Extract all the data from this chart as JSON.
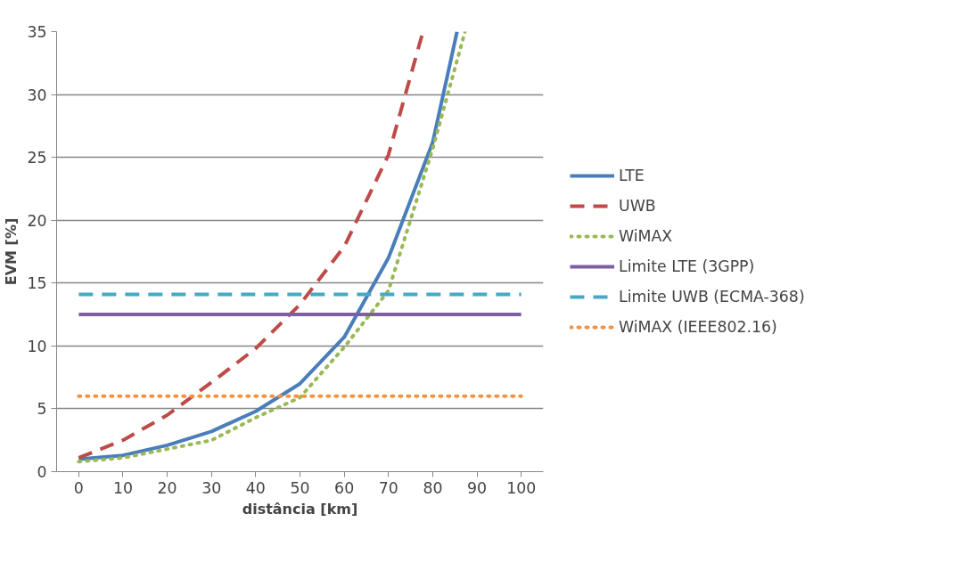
{
  "chart_data": {
    "type": "line",
    "xlabel": "distância [km]",
    "ylabel": "EVM [%]",
    "xlim": [
      -5,
      105
    ],
    "xticks": [
      0,
      10,
      20,
      30,
      40,
      50,
      60,
      70,
      80,
      90,
      100
    ],
    "ylim": [
      0,
      35
    ],
    "yticks": [
      0,
      5,
      10,
      15,
      20,
      25,
      30,
      35
    ],
    "grid": "y",
    "legend": "right",
    "series": [
      {
        "name": "LTE",
        "color": "#4a7ebb",
        "line_style": "solid",
        "x": [
          0,
          10,
          20,
          30,
          40,
          50,
          60,
          70,
          80,
          85.5
        ],
        "values": [
          1.0,
          1.3,
          2.1,
          3.2,
          4.8,
          7.0,
          10.7,
          17.0,
          26.2,
          35
        ]
      },
      {
        "name": "UWB",
        "color": "#be4b48",
        "line_style": "dashed",
        "x": [
          0,
          10,
          20,
          30,
          40,
          50,
          60,
          70,
          77.8
        ],
        "values": [
          1.1,
          2.5,
          4.5,
          7.1,
          9.8,
          13.3,
          17.9,
          25.2,
          35
        ]
      },
      {
        "name": "WiMAX",
        "color": "#98b954",
        "line_style": "dotted",
        "x": [
          0,
          10,
          20,
          30,
          40,
          50,
          60,
          70,
          80,
          87.3
        ],
        "values": [
          0.8,
          1.1,
          1.8,
          2.5,
          4.3,
          5.9,
          9.9,
          14.4,
          25.7,
          35
        ]
      },
      {
        "name": "Limite LTE (3GPP)",
        "color": "#7d60a0",
        "line_style": "solid",
        "x": [
          0,
          100
        ],
        "values": [
          12.5,
          12.5
        ]
      },
      {
        "name": "Limite UWB (ECMA-368)",
        "color": "#46aac5",
        "line_style": "dashed",
        "x": [
          0,
          100
        ],
        "values": [
          14.1,
          14.1
        ]
      },
      {
        "name": "WiMAX (IEEE802.16)",
        "color": "#f69240",
        "line_style": "dotted",
        "x": [
          0,
          100
        ],
        "values": [
          6.0,
          6.0
        ]
      }
    ]
  }
}
